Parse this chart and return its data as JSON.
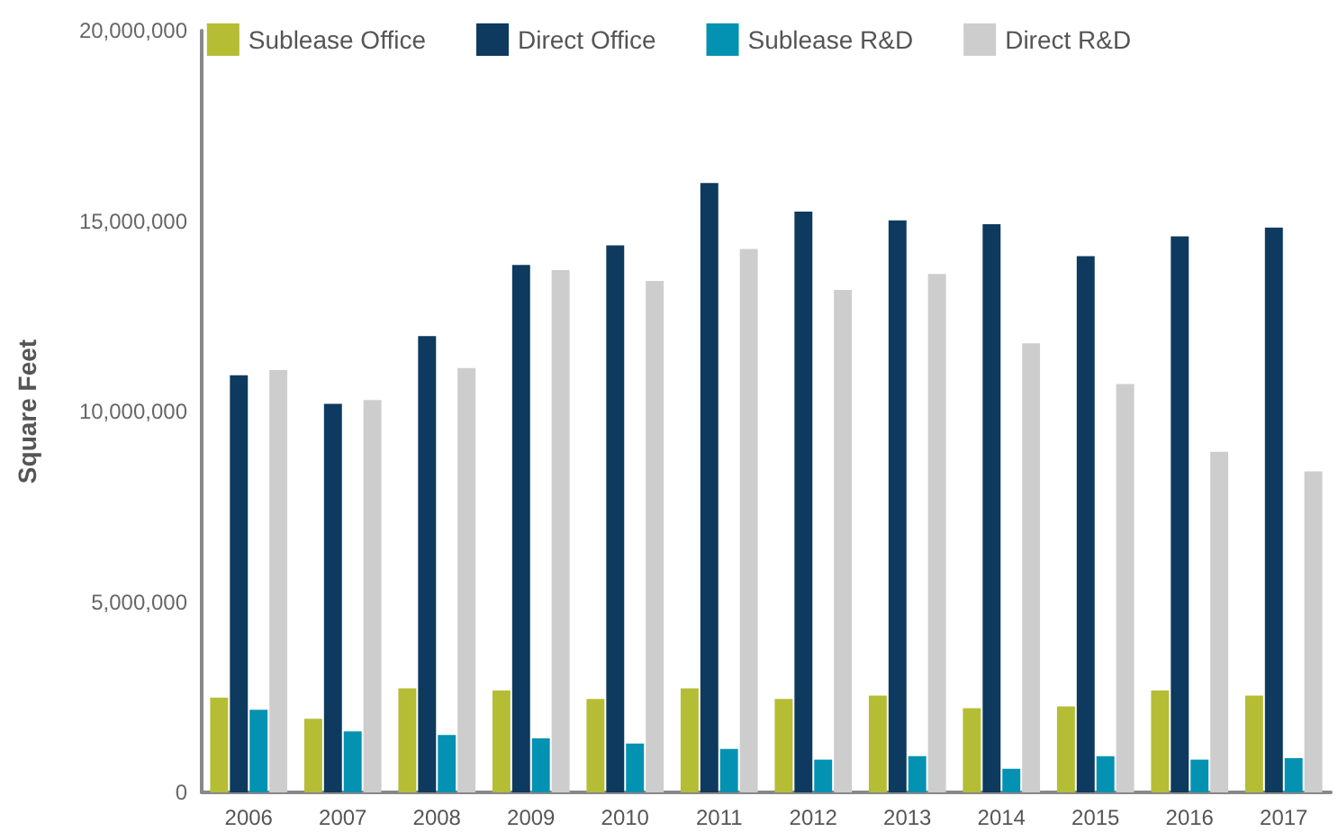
{
  "chart_data": {
    "type": "bar",
    "ylabel": "Square Feet",
    "categories": [
      "2006",
      "2007",
      "2008",
      "2009",
      "2010",
      "2011",
      "2012",
      "2013",
      "2014",
      "2015",
      "2016",
      "2017"
    ],
    "series": [
      {
        "name": "Sublease Office",
        "color": "#b5bd35",
        "values": [
          2490000,
          1930000,
          2730000,
          2680000,
          2450000,
          2730000,
          2450000,
          2540000,
          2210000,
          2260000,
          2680000,
          2540000
        ]
      },
      {
        "name": "Direct Office",
        "color": "#0d3a5e",
        "values": [
          10950000,
          10200000,
          11980000,
          13850000,
          14360000,
          16000000,
          15250000,
          15020000,
          14920000,
          14080000,
          14600000,
          14830000
        ]
      },
      {
        "name": "Sublease R&D",
        "color": "#0492b2",
        "values": [
          2170000,
          1600000,
          1510000,
          1420000,
          1280000,
          1140000,
          860000,
          950000,
          620000,
          950000,
          860000,
          900000
        ]
      },
      {
        "name": "Direct R&D",
        "color": "#cdcdcd",
        "values": [
          11090000,
          10300000,
          11140000,
          13710000,
          13430000,
          14270000,
          13190000,
          13610000,
          11790000,
          10720000,
          8940000,
          8430000
        ]
      }
    ],
    "ylim": [
      0,
      20000000
    ],
    "yticks": [
      0,
      {
        "value": 5000000,
        "label": "5,000,000"
      },
      {
        "value": 10000000,
        "label": "10,000,000"
      },
      {
        "value": 15000000,
        "label": "15,000,000"
      },
      {
        "value": 20000000,
        "label": "20,000,000"
      }
    ],
    "grid": false,
    "legend": "top"
  }
}
